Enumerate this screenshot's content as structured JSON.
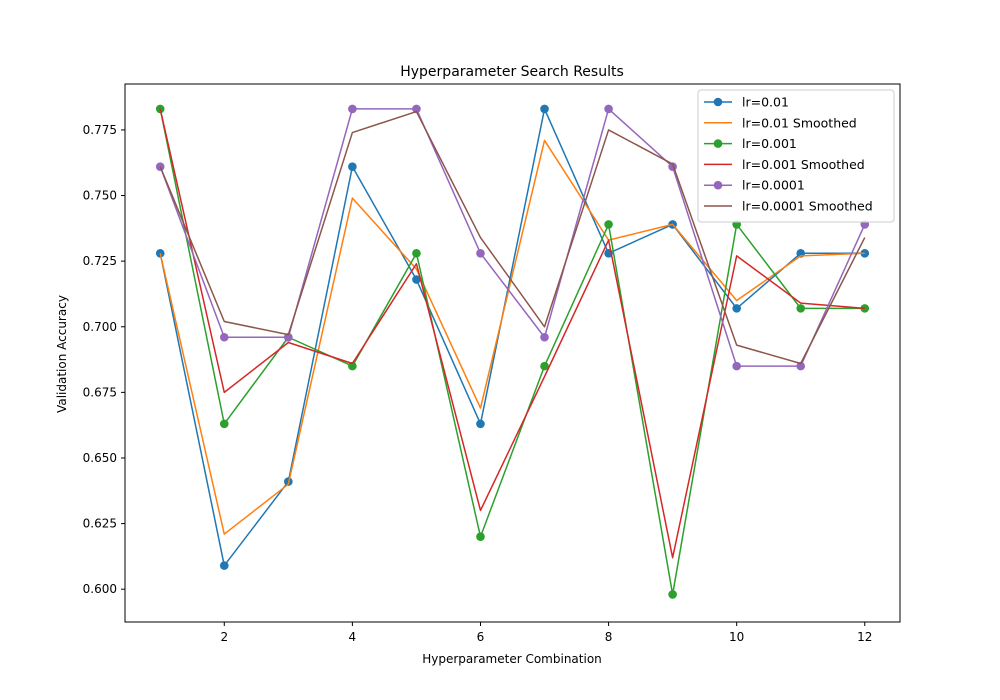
{
  "chart_data": {
    "type": "line",
    "title": "Hyperparameter Search Results",
    "xlabel": "Hyperparameter Combination",
    "ylabel": "Validation Accuracy",
    "xlim": [
      0.45,
      12.55
    ],
    "ylim": [
      0.5875,
      0.7925
    ],
    "xticks": [
      2,
      4,
      6,
      8,
      10,
      12
    ],
    "yticks": [
      0.6,
      0.625,
      0.65,
      0.675,
      0.7,
      0.725,
      0.75,
      0.775
    ],
    "ytick_labels": [
      "0.600",
      "0.625",
      "0.650",
      "0.675",
      "0.700",
      "0.725",
      "0.750",
      "0.775"
    ],
    "grid": false,
    "legend_position": "top-right",
    "x": [
      1,
      2,
      3,
      4,
      5,
      6,
      7,
      8,
      9,
      10,
      11,
      12
    ],
    "series": [
      {
        "name": "lr=0.01",
        "color": "#1f77b4",
        "markers": true,
        "values": [
          0.728,
          0.609,
          0.641,
          0.761,
          0.718,
          0.663,
          0.783,
          0.728,
          0.739,
          0.707,
          0.728,
          0.728
        ]
      },
      {
        "name": "lr=0.01 Smoothed",
        "color": "#ff7f0e",
        "markers": false,
        "values": [
          0.728,
          0.621,
          0.64,
          0.749,
          0.722,
          0.669,
          0.771,
          0.733,
          0.739,
          0.71,
          0.727,
          0.728
        ]
      },
      {
        "name": "lr=0.001",
        "color": "#2ca02c",
        "markers": true,
        "values": [
          0.783,
          0.663,
          0.696,
          0.685,
          0.728,
          0.62,
          0.685,
          0.739,
          0.598,
          0.739,
          0.707,
          0.707
        ]
      },
      {
        "name": "lr=0.001 Smoothed",
        "color": "#d62728",
        "markers": false,
        "values": [
          0.783,
          0.675,
          0.694,
          0.686,
          0.724,
          0.63,
          0.681,
          0.733,
          0.612,
          0.727,
          0.709,
          0.707
        ]
      },
      {
        "name": "lr=0.0001",
        "color": "#9467bd",
        "markers": true,
        "values": [
          0.761,
          0.696,
          0.696,
          0.783,
          0.783,
          0.728,
          0.696,
          0.783,
          0.761,
          0.685,
          0.685,
          0.739
        ]
      },
      {
        "name": "lr=0.0001 Smoothed",
        "color": "#8c564b",
        "markers": false,
        "values": [
          0.761,
          0.702,
          0.697,
          0.774,
          0.782,
          0.734,
          0.7,
          0.775,
          0.762,
          0.693,
          0.686,
          0.734
        ]
      }
    ]
  }
}
